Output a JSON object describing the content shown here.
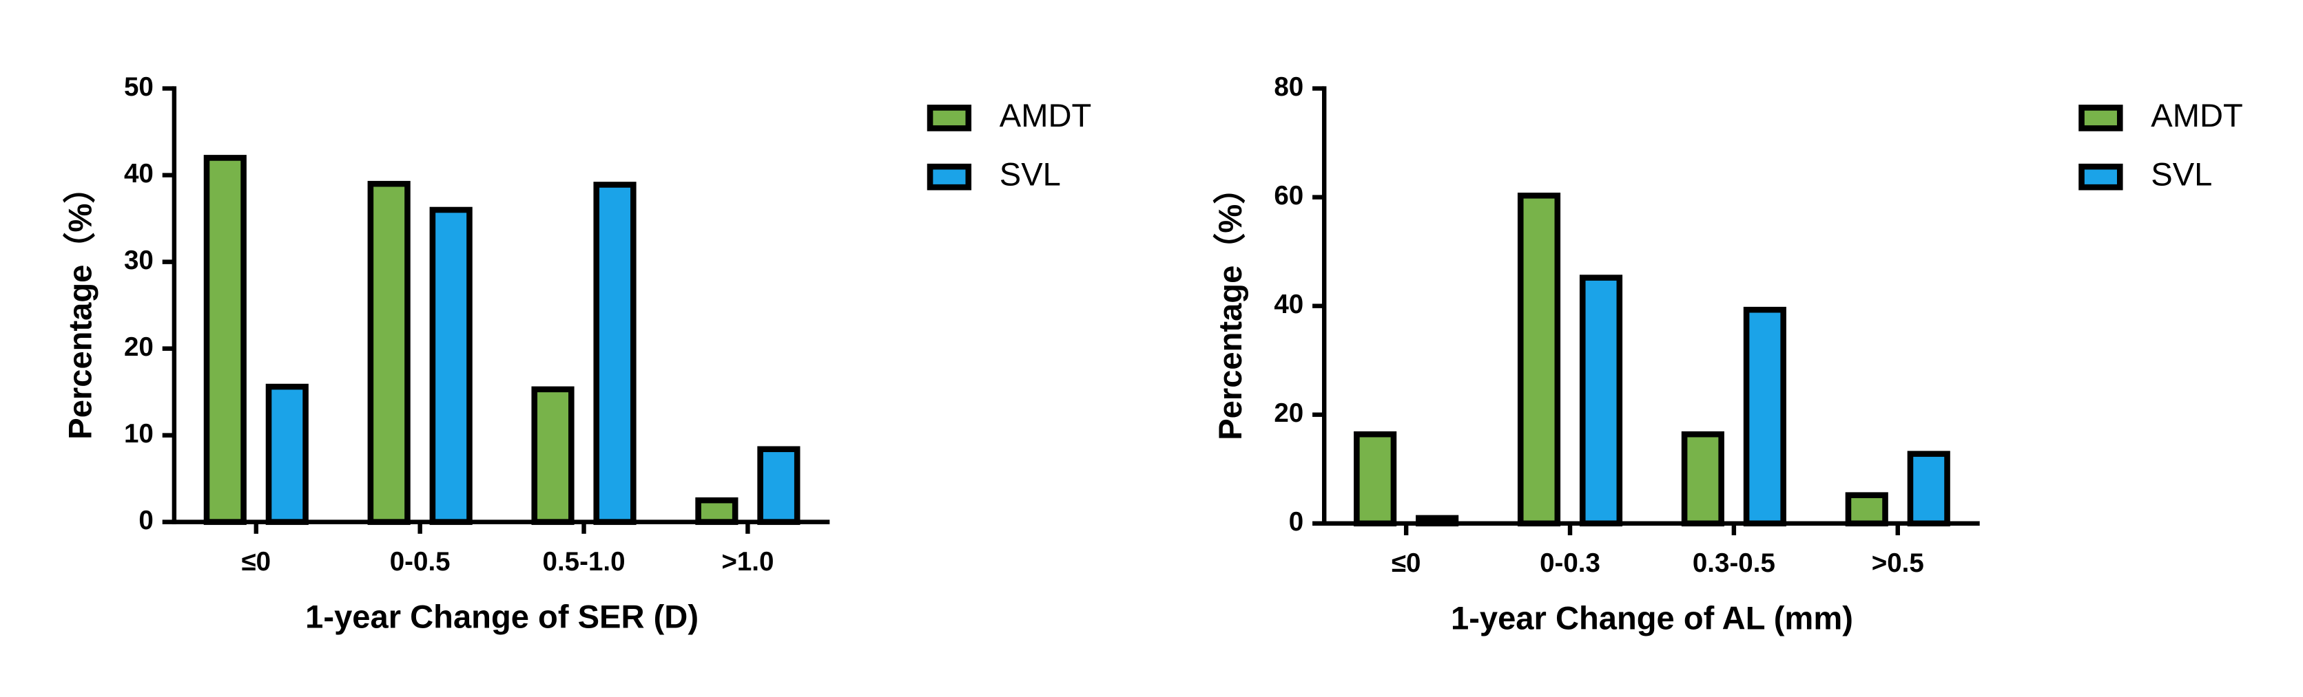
{
  "chart_data": [
    {
      "type": "bar",
      "x_label": "1-year Change of SER (D)",
      "y_label": "Percentage（%）",
      "categories": [
        "≤0",
        "0-0.5",
        "0.5-1.0",
        ">1.0"
      ],
      "series": [
        {
          "name": "AMDT",
          "color": "#78b34a",
          "values": [
            42,
            39,
            15.3,
            2.5
          ]
        },
        {
          "name": "SVL",
          "color": "#1ba3e8",
          "values": [
            15.6,
            36,
            38.9,
            8.4
          ]
        }
      ],
      "ylim": [
        0,
        50
      ],
      "yticks": [
        0,
        10,
        20,
        30,
        40,
        50
      ]
    },
    {
      "type": "bar",
      "x_label": "1-year Change of AL (mm)",
      "y_label": "Percentage（%）",
      "categories": [
        "≤0",
        "0-0.3",
        "0.3-0.5",
        ">0.5"
      ],
      "series": [
        {
          "name": "AMDT",
          "color": "#78b34a",
          "values": [
            16.4,
            60.3,
            16.4,
            5.2
          ]
        },
        {
          "name": "SVL",
          "color": "#1ba3e8",
          "values": [
            1.0,
            45.2,
            39.3,
            12.8
          ]
        }
      ],
      "ylim": [
        0,
        80
      ],
      "yticks": [
        0,
        20,
        40,
        60,
        80
      ]
    }
  ]
}
